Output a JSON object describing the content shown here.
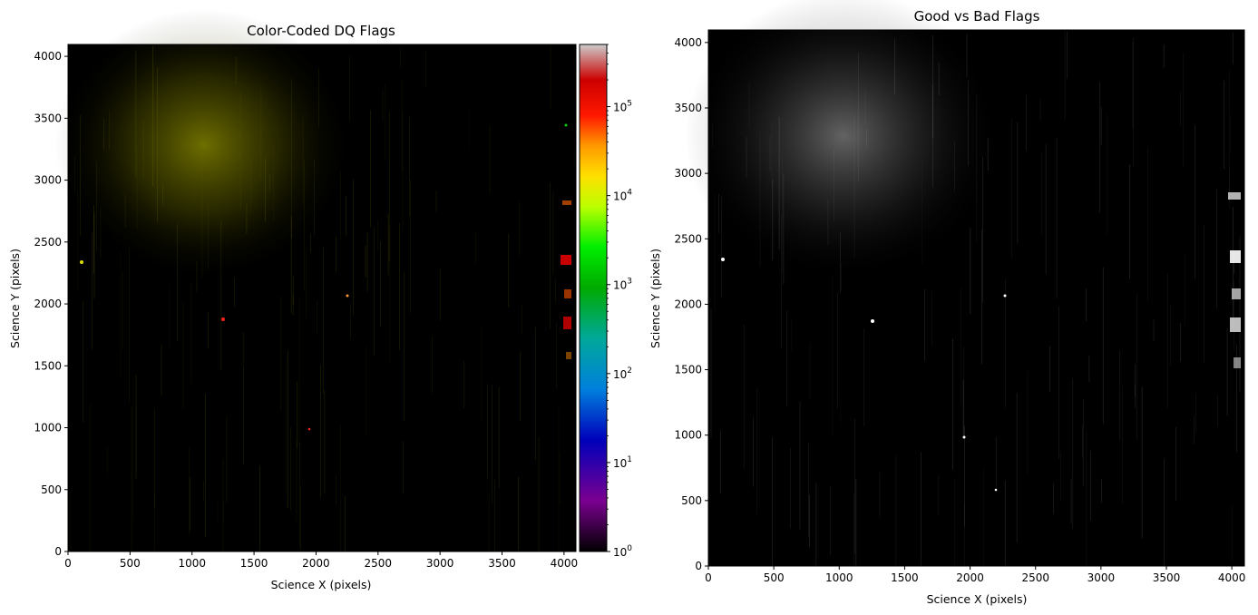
{
  "chart_data": [
    {
      "type": "heatmap",
      "title": "Color-Coded DQ Flags",
      "xlabel": "Science X (pixels)",
      "ylabel": "Science Y (pixels)",
      "xlim": [
        0,
        4096
      ],
      "ylim": [
        0,
        4096
      ],
      "xticks": [
        "0",
        "500",
        "1000",
        "1500",
        "2000",
        "2500",
        "3000",
        "3500",
        "4000"
      ],
      "yticks": [
        "0",
        "500",
        "1000",
        "1500",
        "2000",
        "2500",
        "3000",
        "3500",
        "4000"
      ],
      "colorbar": {
        "scale": "log",
        "range": [
          1,
          500000
        ],
        "ticks": [
          {
            "base": "10",
            "exp": "0"
          },
          {
            "base": "10",
            "exp": "1"
          },
          {
            "base": "10",
            "exp": "2"
          },
          {
            "base": "10",
            "exp": "3"
          },
          {
            "base": "10",
            "exp": "4"
          },
          {
            "base": "10",
            "exp": "5"
          }
        ],
        "colormap": "nipy_spectral"
      },
      "colors": {
        "background": "#000000",
        "glow": "#c8c800"
      }
    },
    {
      "type": "heatmap",
      "title": "Good vs Bad Flags",
      "xlabel": "Science X (pixels)",
      "ylabel": "Science Y (pixels)",
      "xlim": [
        0,
        4096
      ],
      "ylim": [
        0,
        4096
      ],
      "xticks": [
        "0",
        "500",
        "1000",
        "1500",
        "2000",
        "2500",
        "3000",
        "3500",
        "4000"
      ],
      "yticks": [
        "0",
        "500",
        "1000",
        "1500",
        "2000",
        "2500",
        "3000",
        "3500",
        "4000"
      ],
      "colormap": "gray",
      "colors": {
        "background": "#000000",
        "glow": "#b4b4b4"
      }
    }
  ]
}
